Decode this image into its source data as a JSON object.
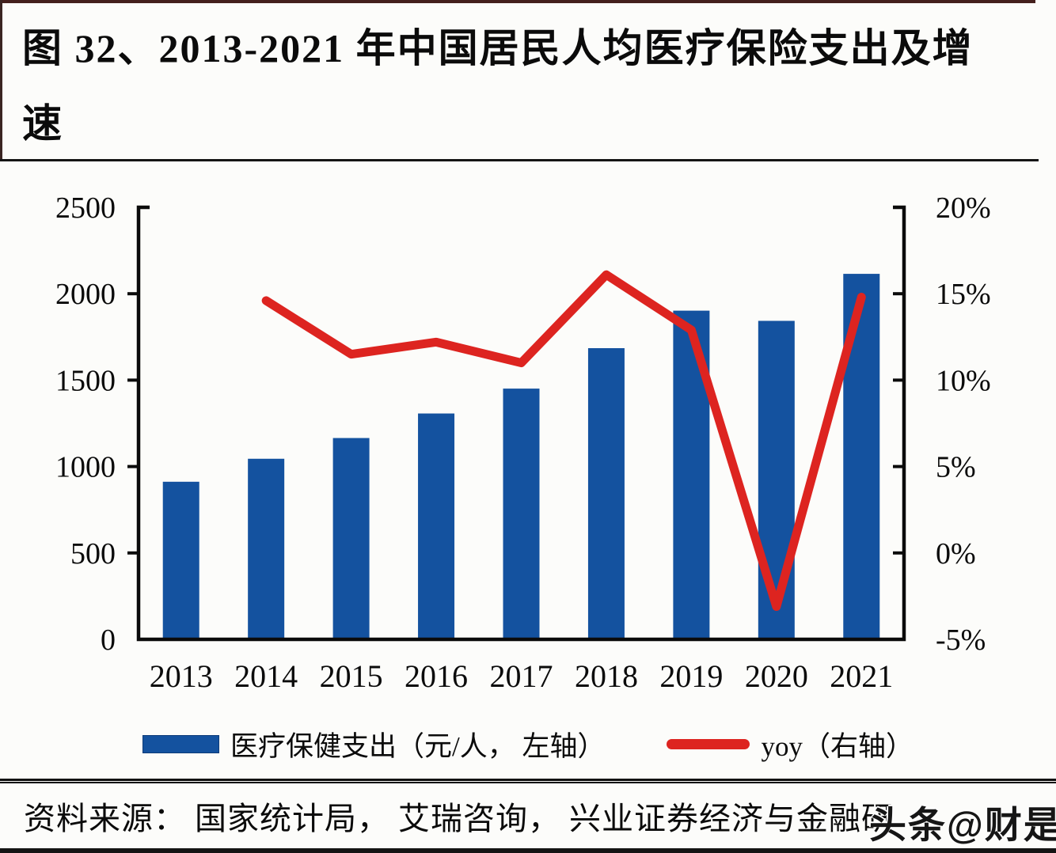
{
  "title": {
    "full": "图 32、2013-2021 年中国居民人均医疗保险支出及增速",
    "line1": "图 32、2013-2021 年中国居民人均医疗保险支出及增",
    "line2": "速"
  },
  "chart_data": {
    "type": "bar",
    "title": "图 32、2013-2021 年中国居民人均医疗保险支出及增速",
    "categories": [
      "2013",
      "2014",
      "2015",
      "2016",
      "2017",
      "2018",
      "2019",
      "2020",
      "2021"
    ],
    "series": [
      {
        "name": "医疗保健支出（元/人， 左轴）",
        "type": "bar",
        "axis": "left",
        "color": "#14529F",
        "values": [
          912,
          1045,
          1165,
          1307,
          1451,
          1685,
          1902,
          1843,
          2115
        ]
      },
      {
        "name": "yoy（右轴）",
        "type": "line",
        "axis": "right",
        "color": "#DD2420",
        "values": [
          null,
          14.6,
          11.5,
          12.2,
          11.0,
          16.1,
          12.9,
          -3.1,
          14.8
        ]
      }
    ],
    "left_axis": {
      "min": 0,
      "max": 2500,
      "tick_step": 500,
      "tick_labels": [
        "2500",
        "2000",
        "1500",
        "1000",
        "500",
        "0"
      ]
    },
    "right_axis": {
      "min": -5,
      "max": 20,
      "tick_step": 5,
      "tick_labels": [
        "20%",
        "15%",
        "10%",
        "5%",
        "0%",
        "-5%"
      ]
    },
    "grid": false,
    "legend_position": "bottom"
  },
  "legend": {
    "bar_label": "医疗保健支出（元/人， 左轴）",
    "line_label": "yoy（右轴）"
  },
  "source_line": {
    "text": "资料来源： 国家统计局， 艾瑞咨询， 兴业证券经济与金融研"
  },
  "watermark": {
    "text": "头条@财是"
  },
  "colors": {
    "bar": "#14529F",
    "line": "#DD2420",
    "axis": "#0b0b0b",
    "divider": "#141414",
    "top_border": "#44201d",
    "background": "#fcfcfa"
  }
}
